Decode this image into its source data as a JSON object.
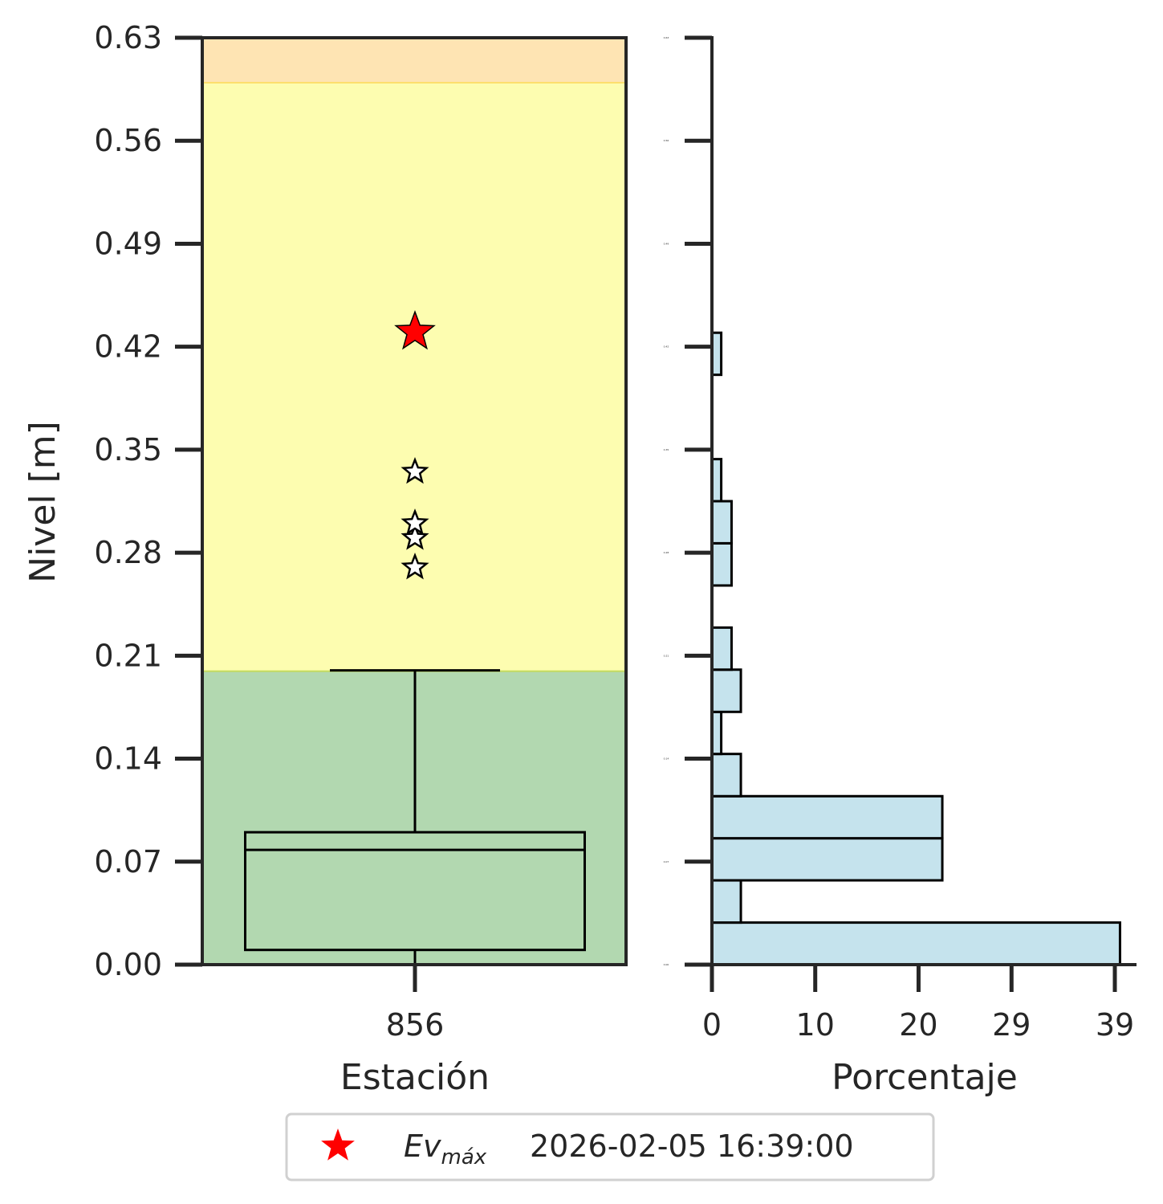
{
  "chart_data": [
    {
      "type": "box",
      "xlabel": "Estación",
      "ylabel": "Nivel [m]",
      "ylim": [
        0.0,
        0.63
      ],
      "yticks": [
        "0.00",
        "0.07",
        "0.14",
        "0.21",
        "0.28",
        "0.35",
        "0.42",
        "0.49",
        "0.56",
        "0.63"
      ],
      "categories": [
        "856"
      ],
      "bands": [
        {
          "from": 0.0,
          "to": 0.2,
          "color": "#b2d8b0",
          "edge": "#c8dc50"
        },
        {
          "from": 0.2,
          "to": 0.6,
          "color": "#fdfdb0",
          "edge": "#fdd860"
        },
        {
          "from": 0.6,
          "to": 0.63,
          "color": "#fee4b3"
        }
      ],
      "box": {
        "whisker_low": 0.0,
        "q1": 0.01,
        "median": 0.078,
        "q3": 0.09,
        "whisker_high": 0.2
      },
      "outliers": [
        0.27,
        0.29,
        0.3,
        0.335
      ],
      "max_event": {
        "value": 0.43,
        "color": "#ff0000"
      },
      "grid": false
    },
    {
      "type": "bar",
      "orientation": "horizontal",
      "xlabel": "Porcentaje",
      "xticks": [
        "0",
        "10",
        "20",
        "29",
        "39"
      ],
      "xtick_values": [
        0,
        10,
        20,
        29,
        39
      ],
      "xlim": [
        0,
        42
      ],
      "yticks": [
        "0.00",
        "0.07",
        "0.14",
        "0.21",
        "0.28",
        "0.35",
        "0.42",
        "0.49",
        "0.56",
        "0.63"
      ],
      "ylim": [
        0.0,
        0.63
      ],
      "bar_color": "#c5e3ed",
      "bins": [
        {
          "from": 0.0,
          "to": 0.0286,
          "value": 39.5
        },
        {
          "from": 0.0286,
          "to": 0.0573,
          "value": 2.8
        },
        {
          "from": 0.0573,
          "to": 0.0859,
          "value": 22.3
        },
        {
          "from": 0.0859,
          "to": 0.1145,
          "value": 22.3
        },
        {
          "from": 0.1145,
          "to": 0.1432,
          "value": 2.8
        },
        {
          "from": 0.1432,
          "to": 0.1718,
          "value": 0.9
        },
        {
          "from": 0.1718,
          "to": 0.2005,
          "value": 2.8
        },
        {
          "from": 0.2005,
          "to": 0.2291,
          "value": 1.9
        },
        {
          "from": 0.2577,
          "to": 0.2864,
          "value": 1.9
        },
        {
          "from": 0.2864,
          "to": 0.315,
          "value": 1.9
        },
        {
          "from": 0.315,
          "to": 0.3436,
          "value": 0.9
        },
        {
          "from": 0.4009,
          "to": 0.4295,
          "value": 0.9
        }
      ],
      "grid": false
    }
  ],
  "legend": {
    "placement": "bottom-center",
    "ev_main": "Ev",
    "ev_sub": "máx",
    "date": "2026-02-05 16:39:00"
  }
}
